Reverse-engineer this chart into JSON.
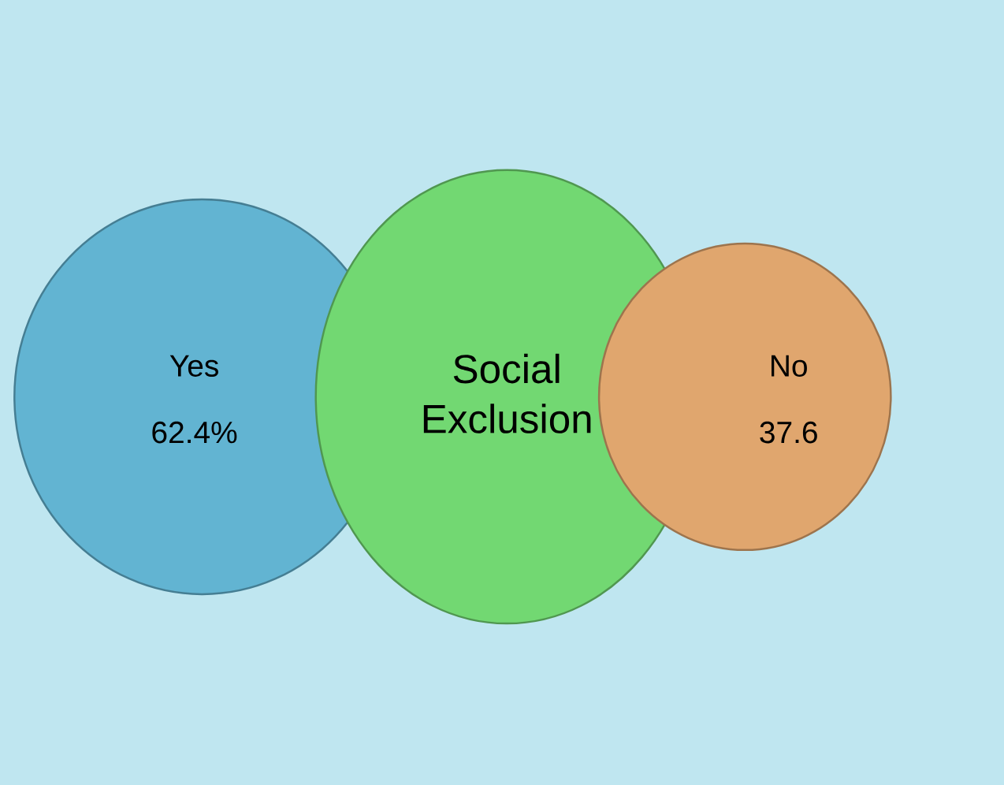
{
  "chart_data": {
    "type": "other",
    "categories": [
      "Yes",
      "Social Exclusion",
      "No"
    ],
    "values": [
      62.4,
      null,
      37.6
    ],
    "value_labels": [
      "62.4%",
      null,
      "37.6"
    ],
    "colors": [
      "#62b4d2",
      "#72d872",
      "#e0a66e"
    ]
  }
}
